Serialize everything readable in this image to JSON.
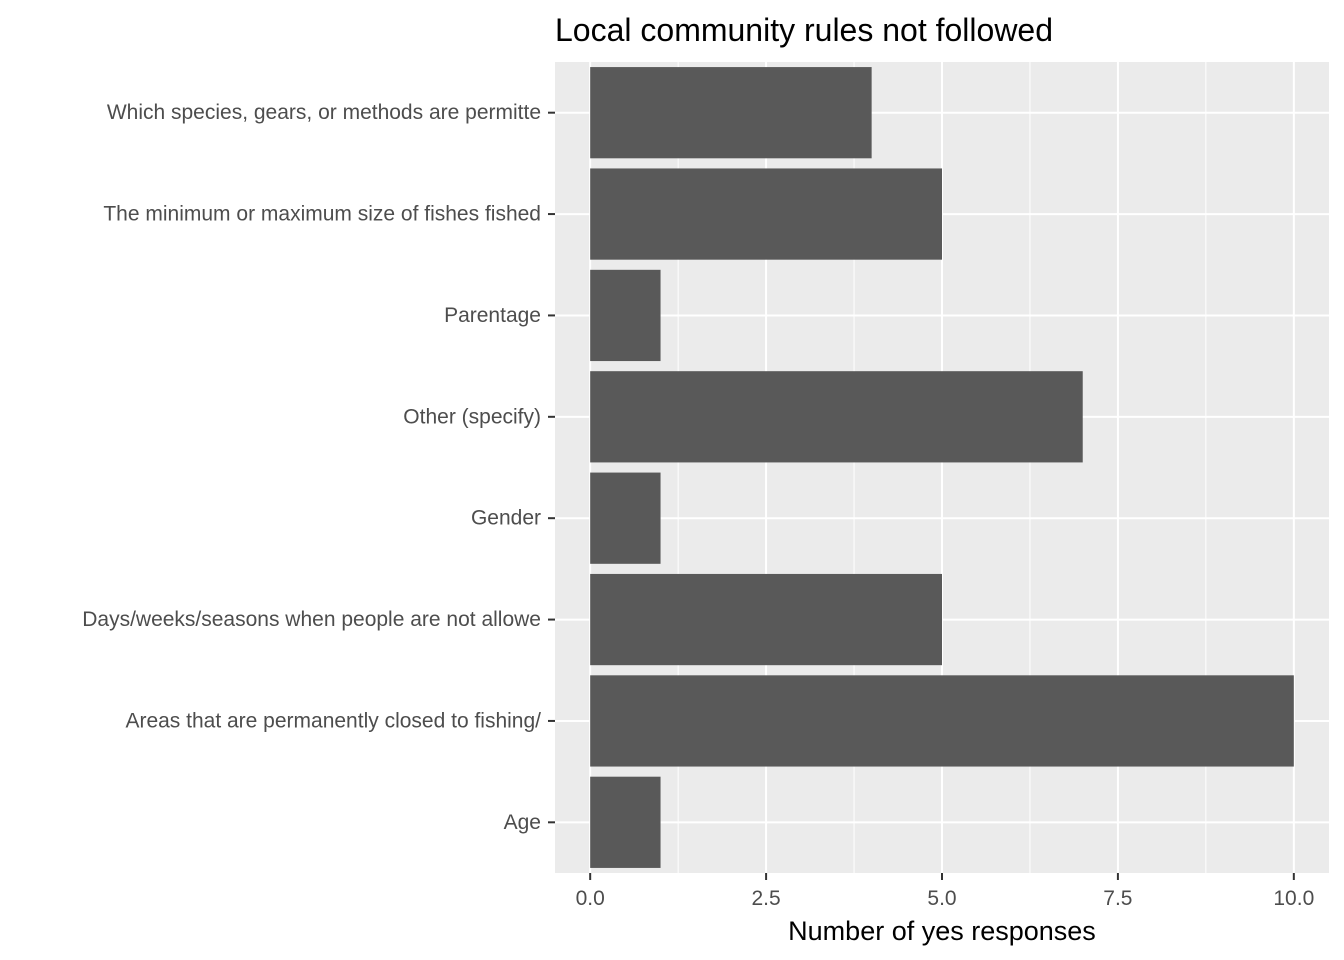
{
  "chart_data": {
    "type": "bar",
    "orientation": "horizontal",
    "title": "Local community rules not followed",
    "xlabel": "Number of yes responses",
    "ylabel": "",
    "categories": [
      "Which species, gears, or methods are permitte",
      "The minimum or maximum size of fishes fished ",
      "Parentage",
      "Other (specify)",
      "Gender",
      "Days/weeks/seasons when people are not allowe",
      "Areas that are permanently closed to fishing/",
      "Age"
    ],
    "values": [
      4,
      5,
      1,
      7,
      1,
      5,
      10,
      1
    ],
    "xlim": [
      -0.5,
      10.5
    ],
    "x_ticks": [
      0,
      2.5,
      5,
      7.5,
      10
    ],
    "x_tick_labels": [
      "0.0",
      "2.5",
      "5.0",
      "7.5",
      "10.0"
    ],
    "grid": true,
    "legend": "none",
    "colors": {
      "bar": "#595959",
      "panel": "#ebebeb",
      "grid": "#ffffff",
      "tick": "#333333"
    }
  }
}
